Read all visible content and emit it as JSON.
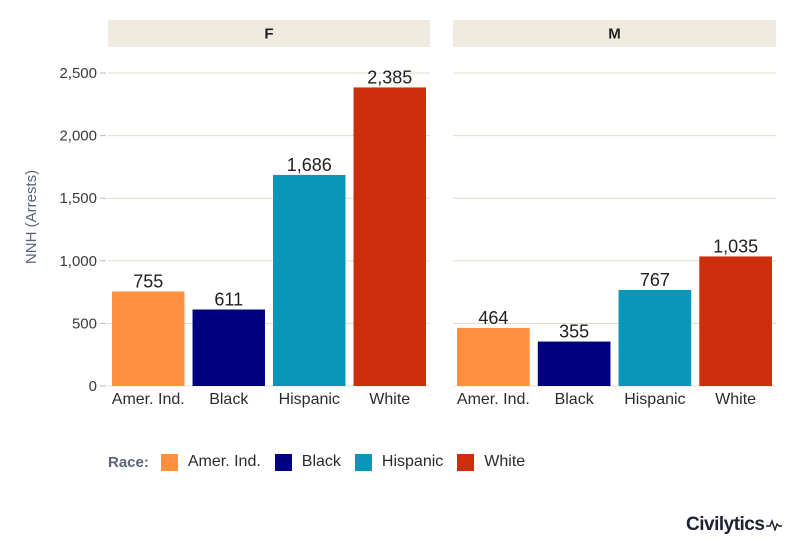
{
  "chart_data": {
    "type": "bar",
    "ylabel": "NNH (Arrests)",
    "ylim": [
      0,
      2700
    ],
    "yticks": [
      0,
      500,
      1000,
      1500,
      2000,
      2500
    ],
    "ytick_labels": [
      "0",
      "500",
      "1,000",
      "1,500",
      "2,000",
      "2,500"
    ],
    "categories": [
      "Amer. Ind.",
      "Black",
      "Hispanic",
      "White"
    ],
    "colors": [
      "#FF9040",
      "#000080",
      "#0896B9",
      "#CC2D0A"
    ],
    "panels": [
      {
        "name": "F",
        "values": [
          755,
          611,
          1686,
          2385
        ],
        "value_labels": [
          "755",
          "611",
          "1,686",
          "2,385"
        ]
      },
      {
        "name": "M",
        "values": [
          464,
          355,
          767,
          1035
        ],
        "value_labels": [
          "464",
          "355",
          "767",
          "1,035"
        ]
      }
    ],
    "grid": "horizontal",
    "legend": {
      "title": "Race:",
      "position": "bottom-left",
      "items": [
        "Amer. Ind.",
        "Black",
        "Hispanic",
        "White"
      ]
    }
  },
  "brand": {
    "name": "Civilytics"
  }
}
